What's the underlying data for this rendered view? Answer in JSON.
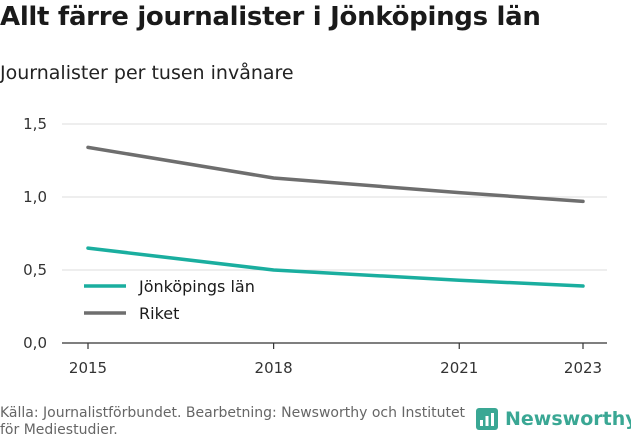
{
  "title": "Allt färre journalister i Jönköpings län",
  "subtitle": "Journalister per tusen invånare",
  "source": "Källa: Journalistförbundet. Bearbetning: Newsworthy och Institutet för Mediestudier.",
  "logo_text": "Newsworthy",
  "colors": {
    "series_1": "#1aae9f",
    "series_2": "#6e6e6e",
    "grid": "#dddddd",
    "logo": "#3aa794"
  },
  "chart_data": {
    "type": "line",
    "x": [
      2015,
      2018,
      2021,
      2023
    ],
    "xticks": [
      "2015",
      "2018",
      "2021",
      "2023"
    ],
    "yticks": [
      "0,0",
      "0,5",
      "1,0",
      "1,5"
    ],
    "ylim": [
      0,
      1.5
    ],
    "grid": true,
    "legend_position": "bottom-left",
    "series": [
      {
        "name": "Jönköpings län",
        "values": [
          0.65,
          0.5,
          0.43,
          0.39
        ]
      },
      {
        "name": "Riket",
        "values": [
          1.34,
          1.13,
          1.03,
          0.97
        ]
      }
    ]
  }
}
